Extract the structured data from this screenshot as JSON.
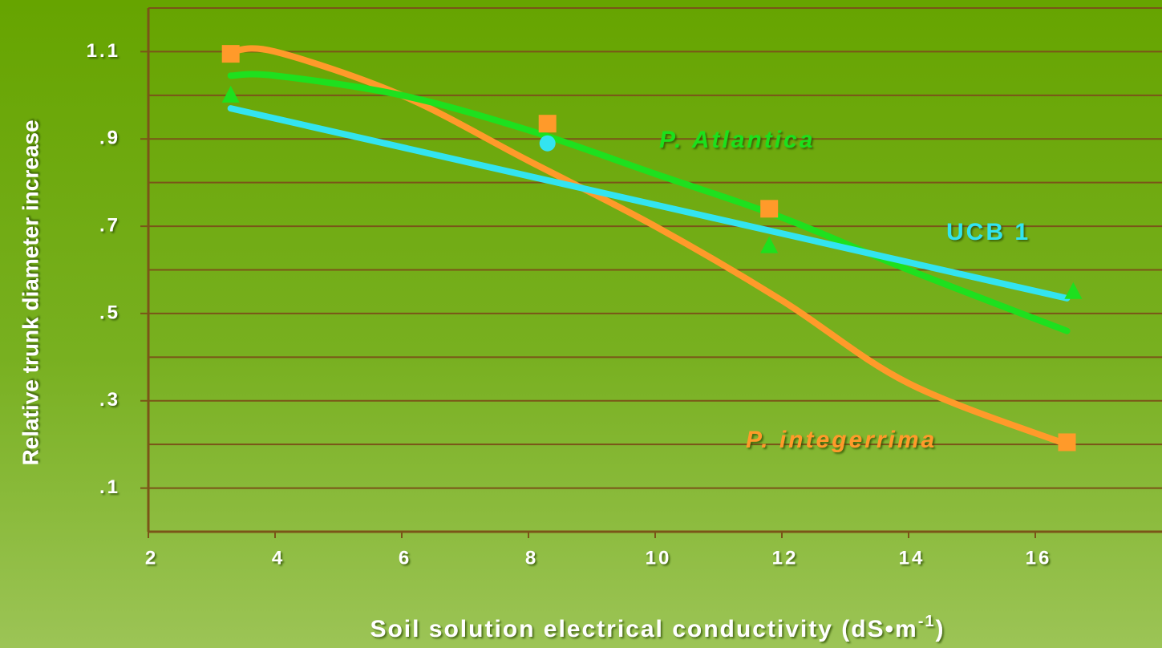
{
  "chart_data": {
    "type": "scatter",
    "ylabel": "Relative trunk diameter increase",
    "xlabel": [
      "Soil solution electrical conductivity (dS•m",
      "-1",
      ")"
    ],
    "xlim": [
      2,
      18
    ],
    "ylim": [
      0,
      1.2
    ],
    "xticks": [
      2,
      4,
      6,
      8,
      10,
      12,
      14,
      16
    ],
    "yticks": [
      {
        "value": 0.1,
        "label": ".1"
      },
      {
        "value": 0.3,
        "label": ".3"
      },
      {
        "value": 0.5,
        "label": ".5"
      },
      {
        "value": 0.7,
        "label": ".7"
      },
      {
        "value": 0.9,
        "label": ".9"
      },
      {
        "value": 1.1,
        "label": "1.1"
      }
    ],
    "minor_gridlines": [
      0.2,
      0.4,
      0.6,
      0.8,
      1.0,
      1.2
    ],
    "grid": true,
    "series": [
      {
        "name": "P. integerrima",
        "color": "#ff9a2a",
        "marker": "square",
        "x": [
          3.3,
          8.3,
          11.8,
          16.5
        ],
        "values": [
          1.095,
          0.935,
          0.74,
          0.205
        ],
        "fit_x": [
          3.3,
          4,
          6,
          8,
          10,
          12,
          14,
          16.5
        ],
        "fit_values": [
          1.1,
          1.1,
          1.0,
          0.85,
          0.7,
          0.53,
          0.34,
          0.2
        ]
      },
      {
        "name": "P. Atlantica",
        "color": "#1ee01e",
        "marker": "triangle",
        "x": [
          3.3,
          11.8,
          16.6
        ],
        "values": [
          1.0,
          0.655,
          0.55
        ],
        "fit_x": [
          3.3,
          4,
          6,
          8,
          10,
          12,
          14,
          16.5
        ],
        "fit_values": [
          1.045,
          1.045,
          1.0,
          0.92,
          0.82,
          0.72,
          0.6,
          0.46
        ]
      },
      {
        "name": "UCB 1",
        "color": "#33e4f0",
        "marker": "circle",
        "x": [
          8.3
        ],
        "values": [
          0.89
        ],
        "fit_x": [
          3.3,
          16.5
        ],
        "fit_values": [
          0.97,
          0.535
        ]
      }
    ]
  }
}
